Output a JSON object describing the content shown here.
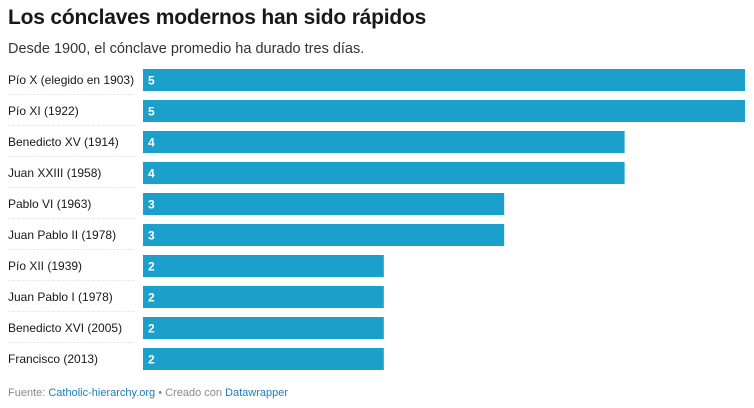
{
  "title": "Los cónclaves modernos han sido rápidos",
  "subtitle": "Desde 1900, el cónclave promedio ha durado tres días.",
  "footer": {
    "source_prefix": "Fuente: ",
    "source_link": "Catholic-hierarchy.org",
    "separator": " • Creado con ",
    "tool_link": "Datawrapper"
  },
  "colors": {
    "bar": "#1aa0cb",
    "bar_label": "#ffffff",
    "row_label": "#181818",
    "row_divider": "#d9d9d9"
  },
  "chart_data": {
    "type": "bar",
    "orientation": "horizontal",
    "categories": [
      "Pío X (elegido en 1903)",
      "Pío XI (1922)",
      "Benedicto XV (1914)",
      "Juan XXIII (1958)",
      "Pablo VI (1963)",
      "Juan Pablo II (1978)",
      "Pío XII (1939)",
      "Juan Pablo I (1978)",
      "Benedicto XVI (2005)",
      "Francisco (2013)"
    ],
    "values": [
      5,
      5,
      4,
      4,
      3,
      3,
      2,
      2,
      2,
      2
    ],
    "xlim": [
      0,
      5
    ],
    "data_labels": "inside-start",
    "grid": false,
    "legend": "none"
  }
}
